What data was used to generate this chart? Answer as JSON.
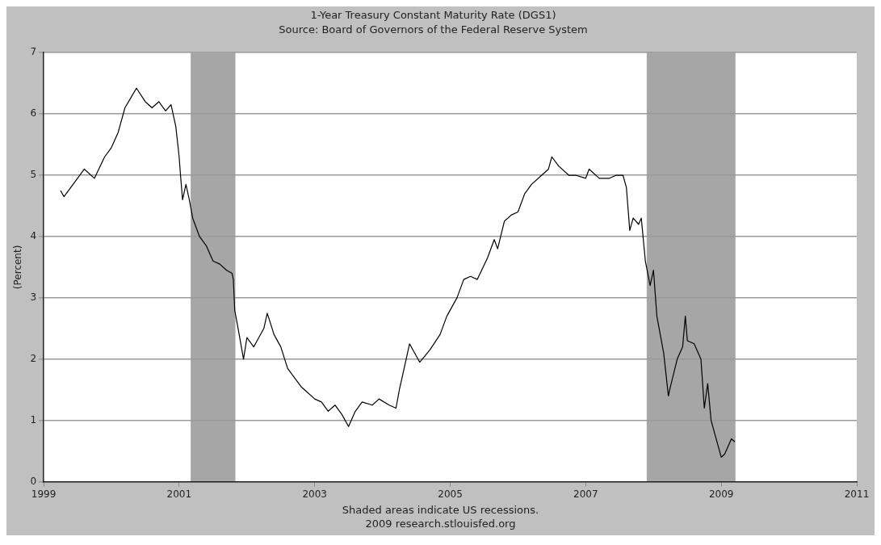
{
  "chart_data": {
    "type": "line",
    "title": "1-Year Treasury Constant Maturity Rate (DGS1)",
    "subtitle": "Source: Board of Governors of the Federal Reserve System",
    "ylabel": "(Percent)",
    "annotations": [
      "Shaded areas indicate US recessions.",
      "2009 research.stlouisfed.org"
    ],
    "xlim": [
      1999,
      2011
    ],
    "xticks": [
      1999,
      2001,
      2003,
      2005,
      2007,
      2009,
      2011
    ],
    "ylim": [
      0,
      7
    ],
    "yticks": [
      0,
      1,
      2,
      3,
      4,
      5,
      6,
      7
    ],
    "grid": "y",
    "bands": [
      {
        "axis": "x",
        "from": 2001.17,
        "to": 2001.83,
        "color": "#a6a6a6"
      },
      {
        "axis": "x",
        "from": 2007.9,
        "to": 2009.21,
        "color": "#a6a6a6"
      }
    ],
    "series": [
      {
        "color": "#000000",
        "x": [
          1999.25,
          1999.3,
          1999.5,
          1999.6,
          1999.75,
          1999.9,
          2000.0,
          2000.1,
          2000.2,
          2000.28,
          2000.37,
          2000.5,
          2000.6,
          2000.7,
          2000.8,
          2000.88,
          2000.95,
          2001.0,
          2001.02,
          2001.05,
          2001.1,
          2001.15,
          2001.2,
          2001.3,
          2001.4,
          2001.5,
          2001.6,
          2001.7,
          2001.78,
          2001.8,
          2001.82,
          2001.87,
          2001.95,
          2002.0,
          2002.1,
          2002.15,
          2002.25,
          2002.3,
          2002.4,
          2002.5,
          2002.6,
          2002.7,
          2002.8,
          2002.9,
          2003.0,
          2003.1,
          2003.2,
          2003.3,
          2003.4,
          2003.5,
          2003.6,
          2003.7,
          2003.85,
          2003.95,
          2004.1,
          2004.2,
          2004.25,
          2004.35,
          2004.4,
          2004.5,
          2004.55,
          2004.7,
          2004.85,
          2004.95,
          2005.1,
          2005.2,
          2005.3,
          2005.4,
          2005.55,
          2005.65,
          2005.7,
          2005.8,
          2005.9,
          2006.0,
          2006.1,
          2006.2,
          2006.35,
          2006.45,
          2006.5,
          2006.6,
          2006.75,
          2006.85,
          2007.0,
          2007.05,
          2007.2,
          2007.35,
          2007.45,
          2007.55,
          2007.6,
          2007.65,
          2007.7,
          2007.78,
          2007.82,
          2007.88,
          2007.95,
          2008.0,
          2008.05,
          2008.1,
          2008.15,
          2008.2,
          2008.22,
          2008.25,
          2008.35,
          2008.43,
          2008.47,
          2008.5,
          2008.6,
          2008.7,
          2008.75,
          2008.8,
          2008.85,
          2008.95,
          2009.0,
          2009.05,
          2009.15,
          2009.2
        ],
        "values": [
          4.75,
          4.65,
          4.95,
          5.1,
          4.95,
          5.3,
          5.45,
          5.7,
          6.1,
          6.25,
          6.42,
          6.2,
          6.1,
          6.2,
          6.05,
          6.15,
          5.8,
          5.3,
          5.0,
          4.6,
          4.85,
          4.6,
          4.3,
          4.0,
          3.85,
          3.6,
          3.55,
          3.45,
          3.4,
          3.3,
          2.8,
          2.5,
          2.0,
          2.35,
          2.2,
          2.3,
          2.5,
          2.75,
          2.4,
          2.2,
          1.85,
          1.7,
          1.55,
          1.45,
          1.35,
          1.3,
          1.15,
          1.25,
          1.1,
          0.9,
          1.15,
          1.3,
          1.25,
          1.35,
          1.25,
          1.2,
          1.5,
          2.0,
          2.25,
          2.05,
          1.95,
          2.15,
          2.4,
          2.7,
          3.0,
          3.3,
          3.35,
          3.3,
          3.65,
          3.95,
          3.8,
          4.25,
          4.35,
          4.4,
          4.7,
          4.85,
          5.0,
          5.1,
          5.3,
          5.15,
          5.0,
          5.0,
          4.95,
          5.1,
          4.95,
          4.95,
          5.0,
          5.0,
          4.8,
          4.1,
          4.3,
          4.2,
          4.3,
          3.6,
          3.2,
          3.45,
          2.7,
          2.4,
          2.1,
          1.6,
          1.4,
          1.55,
          2.0,
          2.2,
          2.7,
          2.3,
          2.25,
          2.0,
          1.2,
          1.6,
          1.0,
          0.6,
          0.4,
          0.45,
          0.7,
          0.65
        ]
      }
    ]
  }
}
